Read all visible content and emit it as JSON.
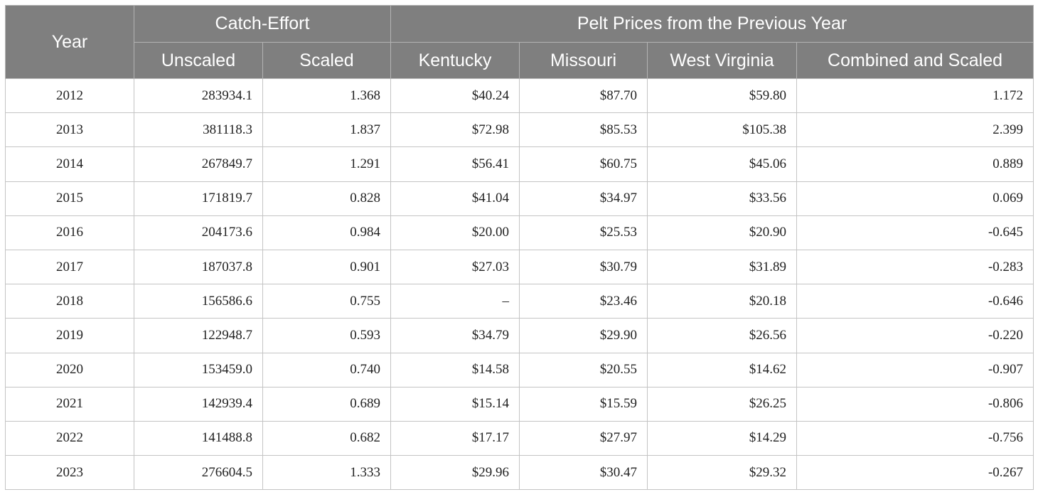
{
  "header": {
    "year": "Year",
    "catch_effort": "Catch-Effort",
    "pelt_prices": "Pelt Prices from the Previous Year",
    "unscaled": "Unscaled",
    "scaled": "Scaled",
    "kentucky": "Kentucky",
    "missouri": "Missouri",
    "west_virginia": "West Virginia",
    "combined_scaled": "Combined and Scaled"
  },
  "rows": [
    [
      "2012",
      "283934.1",
      "1.368",
      "$40.24",
      "$87.70",
      "$59.80",
      "1.172"
    ],
    [
      "2013",
      "381118.3",
      "1.837",
      "$72.98",
      "$85.53",
      "$105.38",
      "2.399"
    ],
    [
      "2014",
      "267849.7",
      "1.291",
      "$56.41",
      "$60.75",
      "$45.06",
      "0.889"
    ],
    [
      "2015",
      "171819.7",
      "0.828",
      "$41.04",
      "$34.97",
      "$33.56",
      "0.069"
    ],
    [
      "2016",
      "204173.6",
      "0.984",
      "$20.00",
      "$25.53",
      "$20.90",
      "-0.645"
    ],
    [
      "2017",
      "187037.8",
      "0.901",
      "$27.03",
      "$30.79",
      "$31.89",
      "-0.283"
    ],
    [
      "2018",
      "156586.6",
      "0.755",
      "–",
      "$23.46",
      "$20.18",
      "-0.646"
    ],
    [
      "2019",
      "122948.7",
      "0.593",
      "$34.79",
      "$29.90",
      "$26.56",
      "-0.220"
    ],
    [
      "2020",
      "153459.0",
      "0.740",
      "$14.58",
      "$20.55",
      "$14.62",
      "-0.907"
    ],
    [
      "2021",
      "142939.4",
      "0.689",
      "$15.14",
      "$15.59",
      "$26.25",
      "-0.806"
    ],
    [
      "2022",
      "141488.8",
      "0.682",
      "$17.17",
      "$27.97",
      "$14.29",
      "-0.756"
    ],
    [
      "2023",
      "276604.5",
      "1.333",
      "$29.96",
      "$30.47",
      "$29.32",
      "-0.267"
    ]
  ]
}
